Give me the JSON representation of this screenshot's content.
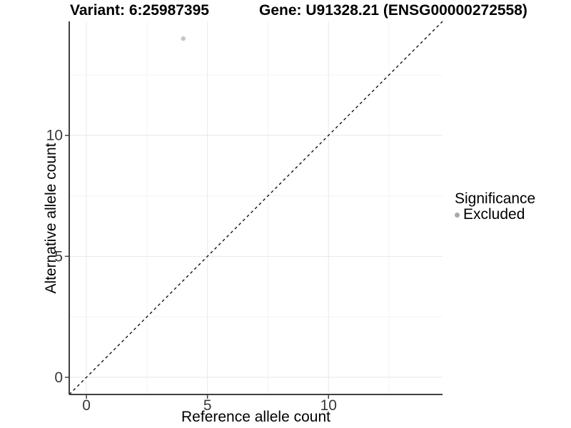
{
  "chart_data": {
    "type": "scatter",
    "title_left": "Variant: 6:25987395",
    "title_right": "Gene: U91328.21 (ENSG00000272558)",
    "xlabel": "Reference allele count",
    "ylabel": "Alternative allele count",
    "xlim": [
      -0.71,
      14.71
    ],
    "ylim": [
      -0.71,
      14.71
    ],
    "x_major_ticks": [
      0,
      5,
      10
    ],
    "y_major_ticks": [
      0,
      5,
      10
    ],
    "x_minor_ticks": [
      2.5,
      7.5,
      12.5
    ],
    "y_minor_ticks": [
      2.5,
      7.5,
      12.5
    ],
    "grid": "major+minor",
    "identity_line": {
      "style": "dashed",
      "color": "#000000",
      "from": [
        -0.71,
        -0.71
      ],
      "to": [
        14.71,
        14.71
      ]
    },
    "series": [
      {
        "name": "Excluded",
        "color": "#c6c6c6",
        "points": [
          {
            "x": 4,
            "y": 14
          }
        ]
      }
    ],
    "legend": {
      "title": "Significance",
      "position": "right",
      "items": [
        {
          "label": "Excluded",
          "color": "#a9a9a9"
        }
      ]
    },
    "style": {
      "background": "#ffffff",
      "axis_color": "#404040",
      "grid_major": "#e8e8e8",
      "grid_minor": "#f3f3f3",
      "tick_text_color": "#383838"
    }
  }
}
